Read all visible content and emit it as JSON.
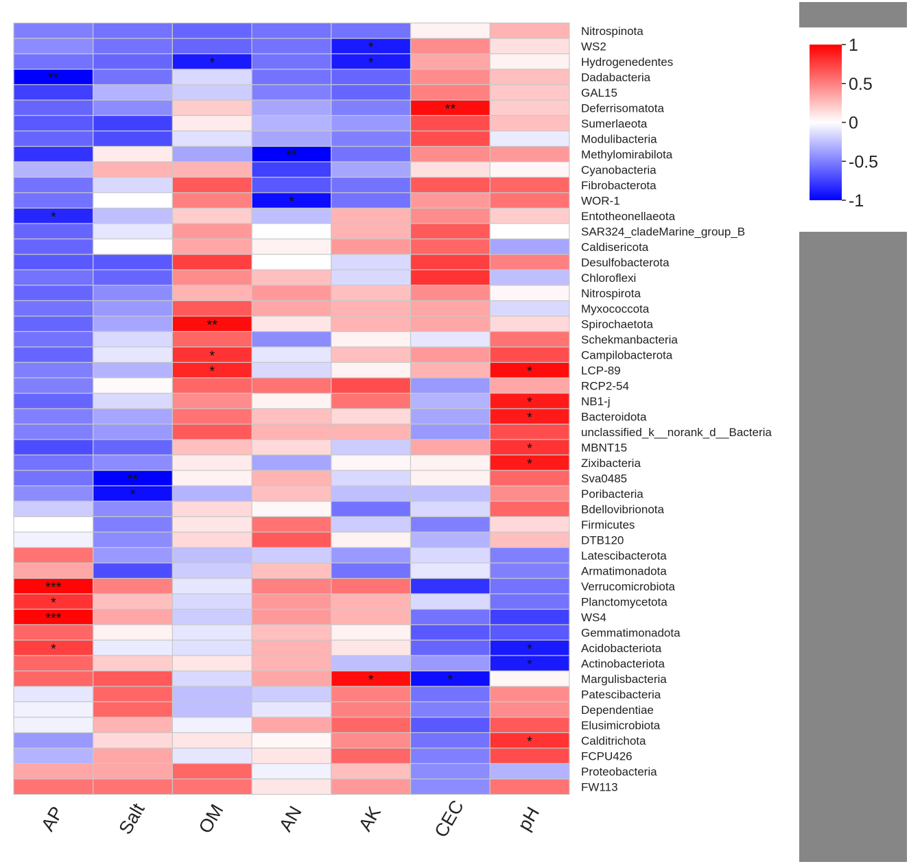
{
  "chart_data": {
    "type": "heatmap",
    "title": "",
    "columns": [
      "AP",
      "Salt",
      "OM",
      "AN",
      "AK",
      "CEC",
      "pH"
    ],
    "rows": [
      "Nitrospinota",
      "WS2",
      "Hydrogenedentes",
      "Dadabacteria",
      "GAL15",
      "Deferrisomatota",
      "Sumerlaeota",
      "Modulibacteria",
      "Methylomirabilota",
      "Cyanobacteria",
      "Fibrobacterota",
      "WOR-1",
      "Entotheonellaeota",
      "SAR324_cladeMarine_group_B",
      "Caldisericota",
      "Desulfobacterota",
      "Chloroflexi",
      "Nitrospirota",
      "Myxococcota",
      "Spirochaetota",
      "Schekmanbacteria",
      "Campilobacterota",
      "LCP-89",
      "RCP2-54",
      "NB1-j",
      "Bacteroidota",
      "unclassified_k__norank_d__Bacteria",
      "MBNT15",
      "Zixibacteria",
      "Sva0485",
      "Poribacteria",
      "Bdellovibrionota",
      "Firmicutes",
      "DTB120",
      "Latescibacterota",
      "Armatimonadota",
      "Verrucomicrobiota",
      "Planctomycetota",
      "WS4",
      "Gemmatimonadota",
      "Acidobacteriota",
      "Actinobacteriota",
      "Margulisbacteria",
      "Patescibacteria",
      "Dependentiae",
      "Elusimicrobiota",
      "Calditrichota",
      "FCPU426",
      "Proteobacteria",
      "FW113"
    ],
    "values": [
      [
        -0.5,
        -0.55,
        -0.6,
        -0.55,
        -0.55,
        0.05,
        0.3
      ],
      [
        -0.45,
        -0.55,
        -0.6,
        -0.55,
        -0.9,
        0.45,
        0.12
      ],
      [
        -0.55,
        -0.6,
        -0.9,
        -0.55,
        -0.9,
        0.35,
        0.05
      ],
      [
        -1.0,
        -0.55,
        -0.15,
        -0.55,
        -0.6,
        0.45,
        0.25
      ],
      [
        -0.75,
        -0.3,
        -0.2,
        -0.5,
        -0.6,
        0.5,
        0.22
      ],
      [
        -0.6,
        -0.45,
        0.2,
        -0.35,
        -0.5,
        0.95,
        0.2
      ],
      [
        -0.65,
        -0.75,
        0.08,
        -0.3,
        -0.4,
        0.7,
        0.25
      ],
      [
        -0.6,
        -0.7,
        -0.12,
        -0.35,
        -0.5,
        0.7,
        -0.08
      ],
      [
        -0.8,
        0.08,
        -0.35,
        -1.0,
        -0.55,
        0.45,
        0.4
      ],
      [
        -0.3,
        0.3,
        0.3,
        -0.75,
        -0.35,
        0.12,
        0.03
      ],
      [
        -0.55,
        -0.15,
        0.65,
        -0.65,
        -0.55,
        0.65,
        0.6
      ],
      [
        -0.55,
        0.0,
        0.5,
        -0.95,
        -0.55,
        0.4,
        0.55
      ],
      [
        -0.85,
        -0.25,
        0.2,
        -0.25,
        0.3,
        0.45,
        0.2
      ],
      [
        -0.6,
        -0.1,
        0.4,
        0.0,
        0.3,
        0.65,
        0.0
      ],
      [
        -0.6,
        0.0,
        0.35,
        0.05,
        0.4,
        0.6,
        -0.35
      ],
      [
        -0.65,
        -0.65,
        0.75,
        0.0,
        -0.15,
        0.75,
        0.5
      ],
      [
        -0.55,
        -0.6,
        0.45,
        0.25,
        -0.15,
        0.8,
        -0.25
      ],
      [
        -0.6,
        -0.45,
        0.3,
        0.4,
        0.25,
        0.45,
        0.03
      ],
      [
        -0.55,
        -0.4,
        0.65,
        0.35,
        0.3,
        0.35,
        -0.15
      ],
      [
        -0.6,
        -0.35,
        0.95,
        0.1,
        0.3,
        0.35,
        0.15
      ],
      [
        -0.55,
        -0.15,
        0.6,
        -0.45,
        0.05,
        -0.1,
        0.55
      ],
      [
        -0.6,
        -0.1,
        0.8,
        -0.1,
        0.25,
        0.4,
        0.7
      ],
      [
        -0.5,
        -0.3,
        0.85,
        -0.15,
        0.05,
        0.3,
        0.95
      ],
      [
        -0.5,
        0.02,
        0.6,
        0.55,
        0.7,
        -0.4,
        0.35
      ],
      [
        -0.6,
        -0.15,
        0.45,
        0.05,
        0.55,
        -0.3,
        0.9
      ],
      [
        -0.5,
        -0.35,
        0.55,
        0.25,
        0.15,
        -0.35,
        0.9
      ],
      [
        -0.5,
        -0.4,
        0.65,
        0.3,
        0.3,
        -0.4,
        0.7
      ],
      [
        -0.7,
        -0.6,
        0.25,
        0.15,
        -0.2,
        0.35,
        0.8
      ],
      [
        -0.55,
        -0.45,
        0.08,
        -0.35,
        0.03,
        0.05,
        0.9
      ],
      [
        -0.55,
        -1.0,
        0.05,
        0.3,
        -0.15,
        0.05,
        0.6
      ],
      [
        -0.45,
        -0.95,
        -0.3,
        0.25,
        -0.25,
        -0.25,
        0.45
      ],
      [
        -0.2,
        -0.45,
        0.15,
        0.03,
        -0.55,
        -0.15,
        0.6
      ],
      [
        0.0,
        -0.5,
        0.1,
        0.55,
        -0.2,
        -0.5,
        0.15
      ],
      [
        -0.05,
        -0.45,
        0.15,
        0.65,
        0.05,
        -0.3,
        0.25
      ],
      [
        0.55,
        -0.4,
        -0.25,
        -0.2,
        -0.4,
        -0.15,
        -0.5
      ],
      [
        0.35,
        -0.7,
        -0.2,
        0.25,
        -0.55,
        -0.1,
        -0.5
      ],
      [
        0.98,
        0.5,
        -0.1,
        0.5,
        0.55,
        -0.8,
        -0.55
      ],
      [
        0.8,
        0.25,
        -0.15,
        0.4,
        0.3,
        -0.15,
        -0.55
      ],
      [
        0.98,
        0.35,
        -0.2,
        0.4,
        0.3,
        -0.55,
        -0.75
      ],
      [
        0.6,
        0.05,
        -0.1,
        0.25,
        0.05,
        -0.65,
        -0.65
      ],
      [
        0.75,
        -0.08,
        -0.12,
        0.3,
        0.1,
        -0.6,
        -0.9
      ],
      [
        0.6,
        0.2,
        0.1,
        0.3,
        -0.25,
        -0.4,
        -0.9
      ],
      [
        0.6,
        0.65,
        -0.15,
        0.35,
        0.95,
        -0.95,
        0.03
      ],
      [
        -0.1,
        0.6,
        -0.25,
        -0.2,
        0.5,
        -0.55,
        0.45
      ],
      [
        -0.05,
        0.6,
        -0.25,
        -0.1,
        0.5,
        -0.5,
        0.45
      ],
      [
        -0.05,
        0.3,
        -0.05,
        0.35,
        0.6,
        -0.65,
        0.65
      ],
      [
        -0.4,
        0.15,
        0.1,
        0.03,
        0.45,
        -0.55,
        0.8
      ],
      [
        -0.3,
        0.35,
        -0.1,
        0.1,
        0.6,
        -0.5,
        0.7
      ],
      [
        0.35,
        0.35,
        0.6,
        -0.05,
        0.25,
        -0.45,
        -0.3
      ],
      [
        0.55,
        0.55,
        0.55,
        0.1,
        0.4,
        -0.45,
        0.55
      ]
    ],
    "significance": [
      [
        "",
        "",
        "",
        "",
        "",
        "",
        ""
      ],
      [
        "",
        "",
        "",
        "",
        "*",
        "",
        ""
      ],
      [
        "",
        "",
        "*",
        "",
        "*",
        "",
        ""
      ],
      [
        "**",
        "",
        "",
        "",
        "",
        "",
        ""
      ],
      [
        "",
        "",
        "",
        "",
        "",
        "",
        ""
      ],
      [
        "",
        "",
        "",
        "",
        "",
        "**",
        ""
      ],
      [
        "",
        "",
        "",
        "",
        "",
        "",
        ""
      ],
      [
        "",
        "",
        "",
        "",
        "",
        "",
        ""
      ],
      [
        "",
        "",
        "",
        "**",
        "",
        "",
        ""
      ],
      [
        "",
        "",
        "",
        "",
        "",
        "",
        ""
      ],
      [
        "",
        "",
        "",
        "",
        "",
        "",
        ""
      ],
      [
        "",
        "",
        "",
        "*",
        "",
        "",
        ""
      ],
      [
        "*",
        "",
        "",
        "",
        "",
        "",
        ""
      ],
      [
        "",
        "",
        "",
        "",
        "",
        "",
        ""
      ],
      [
        "",
        "",
        "",
        "",
        "",
        "",
        ""
      ],
      [
        "",
        "",
        "",
        "",
        "",
        "",
        ""
      ],
      [
        "",
        "",
        "",
        "",
        "",
        "",
        ""
      ],
      [
        "",
        "",
        "",
        "",
        "",
        "",
        ""
      ],
      [
        "",
        "",
        "",
        "",
        "",
        "",
        ""
      ],
      [
        "",
        "",
        "**",
        "",
        "",
        "",
        ""
      ],
      [
        "",
        "",
        "",
        "",
        "",
        "",
        ""
      ],
      [
        "",
        "",
        "*",
        "",
        "",
        "",
        ""
      ],
      [
        "",
        "",
        "*",
        "",
        "",
        "",
        "*"
      ],
      [
        "",
        "",
        "",
        "",
        "",
        "",
        ""
      ],
      [
        "",
        "",
        "",
        "",
        "",
        "",
        "*"
      ],
      [
        "",
        "",
        "",
        "",
        "",
        "",
        "*"
      ],
      [
        "",
        "",
        "",
        "",
        "",
        "",
        ""
      ],
      [
        "",
        "",
        "",
        "",
        "",
        "",
        "*"
      ],
      [
        "",
        "",
        "",
        "",
        "",
        "",
        "*"
      ],
      [
        "",
        "**",
        "",
        "",
        "",
        "",
        ""
      ],
      [
        "",
        "*",
        "",
        "",
        "",
        "",
        ""
      ],
      [
        "",
        "",
        "",
        "",
        "",
        "",
        ""
      ],
      [
        "",
        "",
        "",
        "",
        "",
        "",
        ""
      ],
      [
        "",
        "",
        "",
        "",
        "",
        "",
        ""
      ],
      [
        "",
        "",
        "",
        "",
        "",
        "",
        ""
      ],
      [
        "",
        "",
        "",
        "",
        "",
        "",
        ""
      ],
      [
        "***",
        "",
        "",
        "",
        "",
        "",
        ""
      ],
      [
        "*",
        "",
        "",
        "",
        "",
        "",
        ""
      ],
      [
        "***",
        "",
        "",
        "",
        "",
        "",
        ""
      ],
      [
        "",
        "",
        "",
        "",
        "",
        "",
        ""
      ],
      [
        "*",
        "",
        "",
        "",
        "",
        "",
        "*"
      ],
      [
        "",
        "",
        "",
        "",
        "",
        "",
        "*"
      ],
      [
        "",
        "",
        "",
        "",
        "*",
        "*",
        ""
      ],
      [
        "",
        "",
        "",
        "",
        "",
        "",
        ""
      ],
      [
        "",
        "",
        "",
        "",
        "",
        "",
        ""
      ],
      [
        "",
        "",
        "",
        "",
        "",
        "",
        ""
      ],
      [
        "",
        "",
        "",
        "",
        "",
        "",
        "*"
      ],
      [
        "",
        "",
        "",
        "",
        "",
        "",
        ""
      ],
      [
        "",
        "",
        "",
        "",
        "",
        "",
        ""
      ],
      [
        "",
        "",
        "",
        "",
        "",
        "",
        ""
      ]
    ],
    "colorbar": {
      "range": [
        -1,
        1
      ],
      "ticks": [
        "1",
        "0.5",
        "0",
        "-0.5",
        "-1"
      ],
      "low_color": "#0000ff",
      "mid_color": "#ffffff",
      "high_color": "#ff0000"
    },
    "grid_color": "#c8c8c8"
  }
}
